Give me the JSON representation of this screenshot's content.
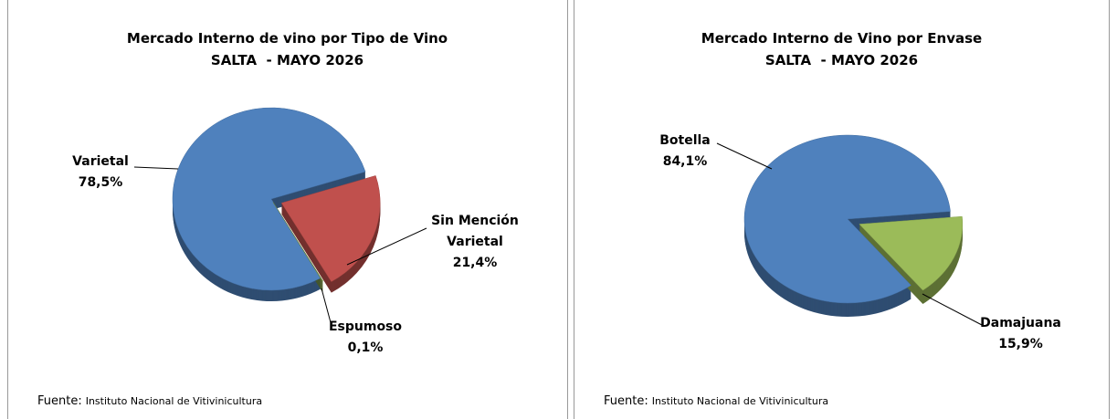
{
  "chart_data": [
    {
      "type": "pie",
      "title": "Mercado Interno de vino por Tipo de Vino",
      "subtitle": "SALTA  - MAYO 2026",
      "categories": [
        "Varietal",
        "Sin Mención Varietal",
        "Espumoso"
      ],
      "values": [
        78.5,
        21.4,
        0.1
      ],
      "value_labels": [
        "78,5%",
        "21,4%",
        "0,1%"
      ],
      "colors": [
        "#4f81bd",
        "#c0504d",
        "#77933c"
      ],
      "source_label": "Fuente:",
      "source": "Instituto Nacional de Vitivinicultura"
    },
    {
      "type": "pie",
      "title": "Mercado Interno de Vino por Envase",
      "subtitle": "SALTA  - MAYO 2026",
      "categories": [
        "Botella",
        "Damajuana"
      ],
      "values": [
        84.1,
        15.9
      ],
      "value_labels": [
        "84,1%",
        "15,9%"
      ],
      "colors": [
        "#4f81bd",
        "#9bbb59"
      ],
      "source_label": "Fuente:",
      "source": "Instituto Nacional de Vitivinicultura"
    }
  ]
}
